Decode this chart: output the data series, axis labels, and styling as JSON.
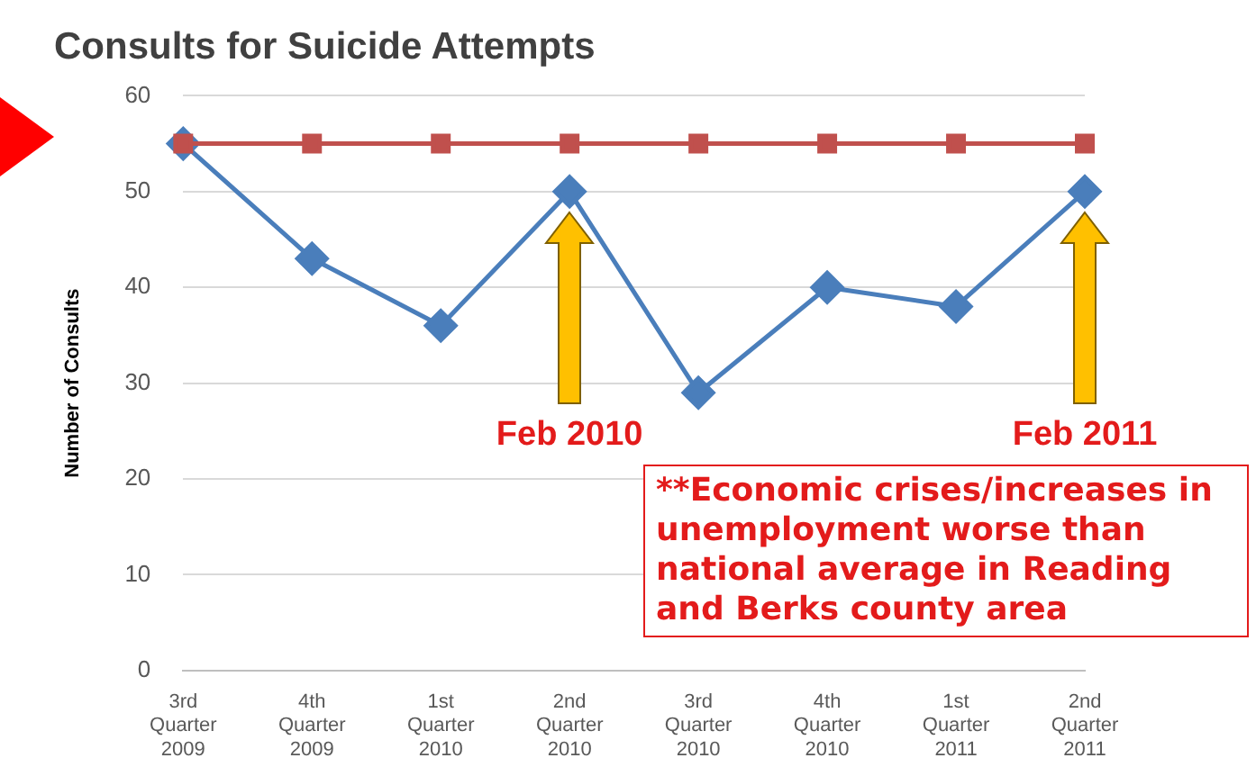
{
  "chart_data": {
    "type": "line",
    "title": "Consults for Suicide Attempts",
    "ylabel": "Number of Consults",
    "categories": [
      "3rd Quarter 2009",
      "4th Quarter 2009",
      "1st Quarter 2010",
      "2nd Quarter 2010",
      "3rd Quarter 2010",
      "4th Quarter 2010",
      "1st Quarter 2011",
      "2nd Quarter 2011"
    ],
    "series": [
      {
        "color": "#c0504d",
        "marker": "square",
        "values": [
          55,
          55,
          55,
          55,
          55,
          55,
          55,
          55
        ]
      },
      {
        "color": "#4a7ebb",
        "marker": "diamond",
        "values": [
          55,
          43,
          36,
          50,
          29,
          40,
          38,
          50
        ]
      }
    ],
    "ylim": [
      0,
      60
    ],
    "yticks": [
      0,
      10,
      20,
      30,
      40,
      50,
      60
    ],
    "grid": "y",
    "legend": false,
    "annotations": [
      "Feb 2010",
      "Feb 2011",
      "**Economic crises/increases in unemployment worse than national average in Reading and Berks county area"
    ]
  }
}
